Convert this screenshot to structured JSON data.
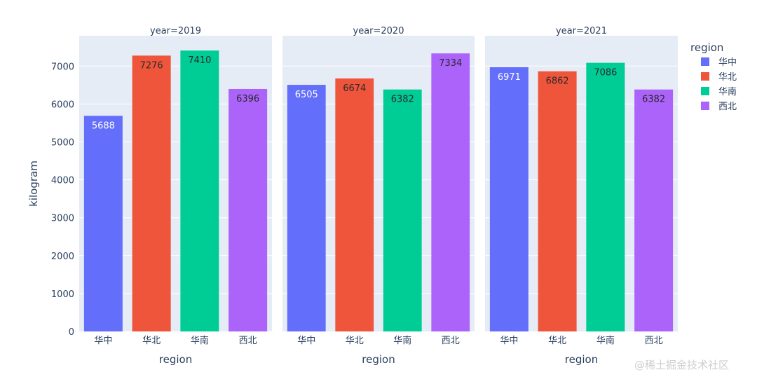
{
  "chart_data": {
    "type": "bar",
    "facet_label": "year",
    "facets": [
      {
        "title": "year=2019",
        "categories": [
          "华中",
          "华北",
          "华南",
          "西北"
        ],
        "values": [
          5688,
          7276,
          7410,
          6396
        ]
      },
      {
        "title": "year=2020",
        "categories": [
          "华中",
          "华北",
          "华南",
          "西北"
        ],
        "values": [
          6505,
          6674,
          6382,
          7334
        ]
      },
      {
        "title": "year=2021",
        "categories": [
          "华中",
          "华北",
          "华南",
          "西北"
        ],
        "values": [
          6971,
          6862,
          7086,
          6382
        ]
      }
    ],
    "xlabel": "region",
    "ylabel": "kilogram",
    "ylim": [
      0,
      7800
    ],
    "yticks": [
      0,
      1000,
      2000,
      3000,
      4000,
      5000,
      6000,
      7000
    ],
    "legend": {
      "title": "region",
      "position": "right",
      "entries": [
        {
          "name": "华中",
          "color": "#636efa"
        },
        {
          "name": "华北",
          "color": "#ef553b"
        },
        {
          "name": "华南",
          "color": "#00cc96"
        },
        {
          "name": "西北",
          "color": "#ab63fa"
        }
      ]
    },
    "colors": {
      "plot_bg": "#e5ecf6",
      "grid": "#ffffff"
    }
  },
  "watermark": "@稀土掘金技术社区"
}
